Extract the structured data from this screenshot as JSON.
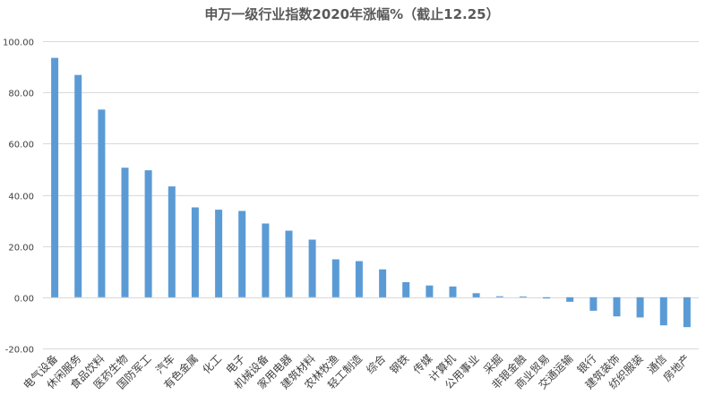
{
  "chart_data": {
    "type": "bar",
    "title": "申万一级行业指数2020年涨幅%（截止12.25）",
    "xlabel": "",
    "ylabel": "",
    "ylim": [
      -20,
      100
    ],
    "yticks": [
      "100.00",
      "80.00",
      "60.00",
      "40.00",
      "20.00",
      "0.00",
      "-20.00"
    ],
    "ytick_values": [
      100,
      80,
      60,
      40,
      20,
      0,
      -20
    ],
    "grid": true,
    "legend": "none",
    "bar_color": "#5b9bd5",
    "categories": [
      "电气设备",
      "休闲服务",
      "食品饮料",
      "医药生物",
      "国防军工",
      "汽车",
      "有色金属",
      "化工",
      "电子",
      "机械设备",
      "家用电器",
      "建筑材料",
      "农林牧渔",
      "轻工制造",
      "综合",
      "钢铁",
      "传媒",
      "计算机",
      "公用事业",
      "采掘",
      "非银金融",
      "商业贸易",
      "交通运输",
      "银行",
      "建筑装饰",
      "纺织服装",
      "通信",
      "房地产"
    ],
    "values": [
      93.5,
      86.8,
      73.3,
      50.6,
      49.6,
      43.3,
      35.1,
      34.2,
      33.7,
      28.8,
      26.0,
      22.5,
      14.8,
      14.1,
      10.9,
      5.9,
      4.6,
      4.2,
      1.6,
      0.4,
      0.3,
      -0.5,
      -1.8,
      -5.3,
      -7.5,
      -7.9,
      -11.0,
      -11.7
    ]
  }
}
